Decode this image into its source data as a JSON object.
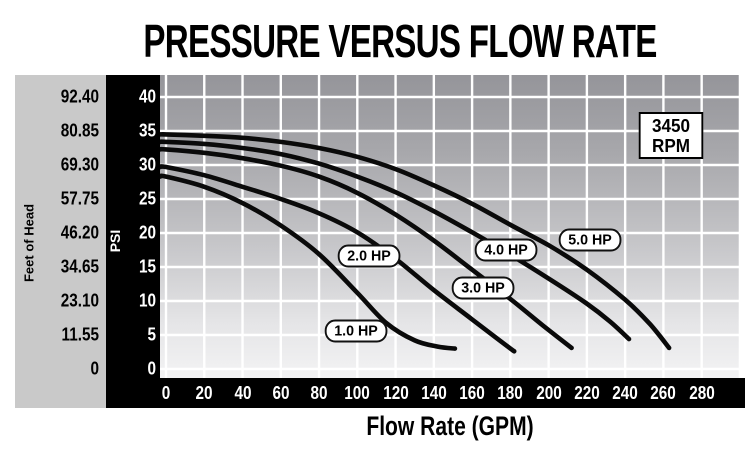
{
  "title": "PRESSURE VERSUS FLOW RATE",
  "chart_data": {
    "type": "line",
    "title": "PRESSURE VERSUS FLOW RATE",
    "xlabel": "Flow Rate (GPM)",
    "ylabel_feet": "Feet of Head",
    "ylabel_psi": "PSI",
    "x_range": [
      0,
      280
    ],
    "x_tick_step": 20,
    "psi_range": [
      0,
      40
    ],
    "psi_tick_step": 5,
    "grid": true,
    "legend_position": "labels-on-curves",
    "x_ticks": [
      "0",
      "20",
      "40",
      "60",
      "80",
      "100",
      "120",
      "140",
      "160",
      "180",
      "200",
      "220",
      "240",
      "260",
      "280"
    ],
    "psi_ticks": [
      "40",
      "35",
      "30",
      "25",
      "20",
      "15",
      "10",
      "5",
      "0"
    ],
    "feet_ticks": [
      "92.40",
      "80.85",
      "69.30",
      "57.75",
      "46.20",
      "34.65",
      "23.10",
      "11.55",
      "0"
    ],
    "series": [
      {
        "name": "1.0 HP",
        "points": [
          [
            0,
            28.3
          ],
          [
            20,
            26.8
          ],
          [
            40,
            24.4
          ],
          [
            60,
            21.1
          ],
          [
            80,
            16.9
          ],
          [
            100,
            11.2
          ],
          [
            115,
            6.8
          ],
          [
            130,
            4.2
          ],
          [
            142,
            3.3
          ],
          [
            151,
            3.0
          ]
        ]
      },
      {
        "name": "2.0 HP",
        "points": [
          [
            0,
            29.7
          ],
          [
            20,
            28.5
          ],
          [
            40,
            26.8
          ],
          [
            60,
            25.0
          ],
          [
            80,
            22.9
          ],
          [
            100,
            20.1
          ],
          [
            120,
            16.2
          ],
          [
            140,
            11.6
          ],
          [
            160,
            7.3
          ],
          [
            173,
            4.5
          ],
          [
            182,
            2.6
          ]
        ]
      },
      {
        "name": "3.0 HP",
        "points": [
          [
            0,
            32.3
          ],
          [
            20,
            31.8
          ],
          [
            40,
            31.0
          ],
          [
            60,
            29.9
          ],
          [
            80,
            28.3
          ],
          [
            100,
            25.9
          ],
          [
            120,
            22.7
          ],
          [
            140,
            18.9
          ],
          [
            160,
            14.6
          ],
          [
            180,
            10.3
          ],
          [
            197,
            6.4
          ],
          [
            212,
            3.1
          ]
        ]
      },
      {
        "name": "4.0 HP",
        "points": [
          [
            0,
            33.4
          ],
          [
            20,
            33.1
          ],
          [
            40,
            32.5
          ],
          [
            60,
            31.6
          ],
          [
            80,
            30.2
          ],
          [
            100,
            28.3
          ],
          [
            120,
            26.0
          ],
          [
            140,
            23.2
          ],
          [
            160,
            20.1
          ],
          [
            180,
            16.8
          ],
          [
            200,
            13.3
          ],
          [
            220,
            9.6
          ],
          [
            232,
            7.0
          ],
          [
            242,
            4.4
          ]
        ]
      },
      {
        "name": "5.0 HP",
        "points": [
          [
            0,
            34.5
          ],
          [
            20,
            34.3
          ],
          [
            40,
            34.0
          ],
          [
            60,
            33.4
          ],
          [
            80,
            32.5
          ],
          [
            100,
            31.2
          ],
          [
            120,
            29.4
          ],
          [
            140,
            27.0
          ],
          [
            160,
            24.3
          ],
          [
            180,
            21.2
          ],
          [
            200,
            18.2
          ],
          [
            220,
            14.6
          ],
          [
            240,
            10.2
          ],
          [
            253,
            6.6
          ],
          [
            263,
            3.1
          ]
        ]
      }
    ],
    "curve_labels": [
      {
        "text": "1.0 HP",
        "gpm": 99.3,
        "psi": 5.6
      },
      {
        "text": "2.0 HP",
        "gpm": 106.1,
        "psi": 16.6
      },
      {
        "text": "3.0 HP",
        "gpm": 165.7,
        "psi": 11.9
      },
      {
        "text": "4.0 HP",
        "gpm": 177.7,
        "psi": 17.5
      },
      {
        "text": "5.0 HP",
        "gpm": 221.6,
        "psi": 19.0
      }
    ],
    "annotation": {
      "lines": [
        "3450",
        "RPM"
      ],
      "gpm": 262.7,
      "psi": 34.6
    },
    "colors": {
      "curve": "#0a0a0a",
      "grid": "#ffffff",
      "plot_top": "#95959a",
      "plot_bottom": "#f3f3f4",
      "axis_band": "#000000",
      "head_band": "#c9c9c9",
      "text_on_dark": "#ffffff",
      "text": "#000000"
    }
  }
}
